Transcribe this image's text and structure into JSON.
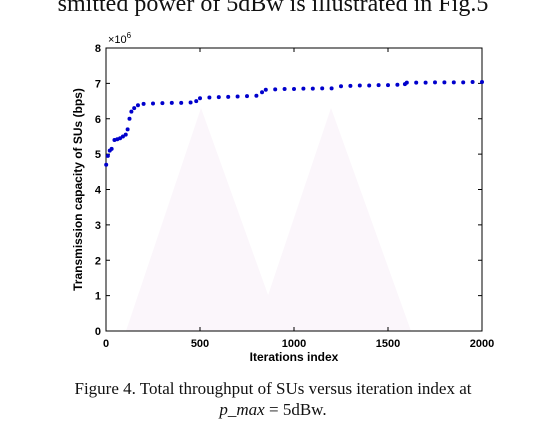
{
  "page": {
    "top_text": "smitted power of 5dBw is illustrated in Fig.5",
    "caption_line1": "Figure 4. Total throughput of SUs versus iteration index at",
    "caption_var": "p_max",
    "caption_rest": " = 5dBw."
  },
  "chart_data": {
    "type": "scatter",
    "title": "",
    "xlabel": "Iterations index",
    "ylabel": "Transmission capacity of SUs (bps)",
    "y_multiplier_label": "×10",
    "y_multiplier_exp": "6",
    "xlim": [
      0,
      2000
    ],
    "ylim": [
      0,
      8
    ],
    "x_ticks": [
      "0",
      "500",
      "1000",
      "1500",
      "2000"
    ],
    "y_ticks": [
      "0",
      "1",
      "2",
      "3",
      "4",
      "5",
      "6",
      "7",
      "8"
    ],
    "grid": false,
    "color": "#0000cc",
    "series": [
      {
        "x": [
          1,
          10,
          20,
          30,
          45,
          60,
          75,
          90,
          105,
          115,
          125,
          135,
          150,
          170,
          200,
          250,
          300,
          350,
          400,
          450,
          480,
          500,
          550,
          600,
          650,
          700,
          750,
          800,
          830,
          850,
          900,
          950,
          1000,
          1050,
          1100,
          1150,
          1200,
          1250,
          1300,
          1350,
          1400,
          1450,
          1500,
          1550,
          1590,
          1600,
          1650,
          1700,
          1750,
          1800,
          1850,
          1900,
          1950,
          2000
        ],
        "y": [
          4.7,
          4.95,
          5.1,
          5.15,
          5.4,
          5.42,
          5.45,
          5.5,
          5.55,
          5.7,
          6.0,
          6.2,
          6.3,
          6.38,
          6.42,
          6.43,
          6.44,
          6.45,
          6.45,
          6.46,
          6.5,
          6.58,
          6.6,
          6.61,
          6.62,
          6.63,
          6.64,
          6.65,
          6.75,
          6.82,
          6.83,
          6.84,
          6.84,
          6.85,
          6.85,
          6.86,
          6.86,
          6.92,
          6.93,
          6.94,
          6.94,
          6.95,
          6.95,
          6.96,
          6.98,
          7.02,
          7.02,
          7.02,
          7.03,
          7.03,
          7.03,
          7.03,
          7.04,
          7.04
        ]
      }
    ]
  }
}
